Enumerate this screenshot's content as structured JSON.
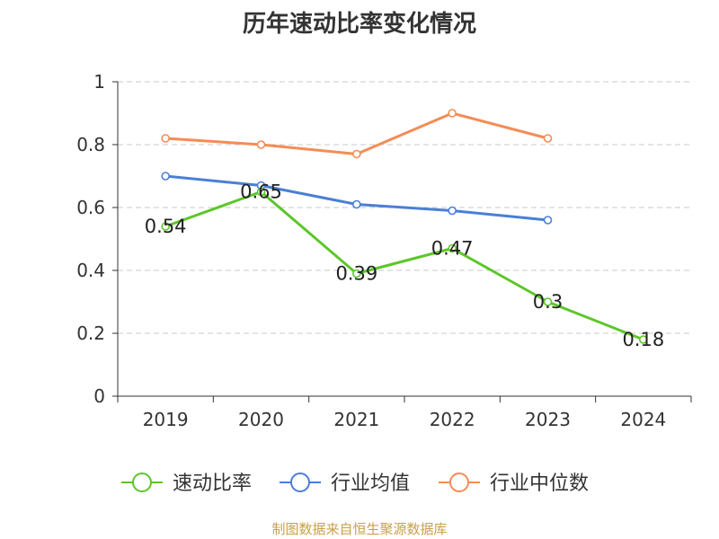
{
  "chart_data": {
    "type": "line",
    "title": "历年速动比率变化情况",
    "categories": [
      "2019",
      "2020",
      "2021",
      "2022",
      "2023",
      "2024"
    ],
    "ylim": [
      0,
      1
    ],
    "yticks": [
      "0",
      "0.2",
      "0.4",
      "0.6",
      "0.8",
      "1"
    ],
    "ytick_values": [
      0,
      0.2,
      0.4,
      0.6,
      0.8,
      1
    ],
    "grid": true,
    "legend_position": "bottom",
    "series": [
      {
        "name": "速动比率",
        "color": "#5cc62a",
        "values": [
          0.54,
          0.65,
          0.39,
          0.47,
          0.3,
          0.18
        ],
        "labels": [
          "0.54",
          "0.65",
          "0.39",
          "0.47",
          "0.3",
          "0.18"
        ]
      },
      {
        "name": "行业均值",
        "color": "#4a7fd6",
        "values": [
          0.7,
          0.67,
          0.61,
          0.59,
          0.56,
          null
        ]
      },
      {
        "name": "行业中位数",
        "color": "#f58c55",
        "values": [
          0.82,
          0.8,
          0.77,
          0.9,
          0.82,
          null
        ]
      }
    ]
  },
  "source": "制图数据来自恒生聚源数据库"
}
